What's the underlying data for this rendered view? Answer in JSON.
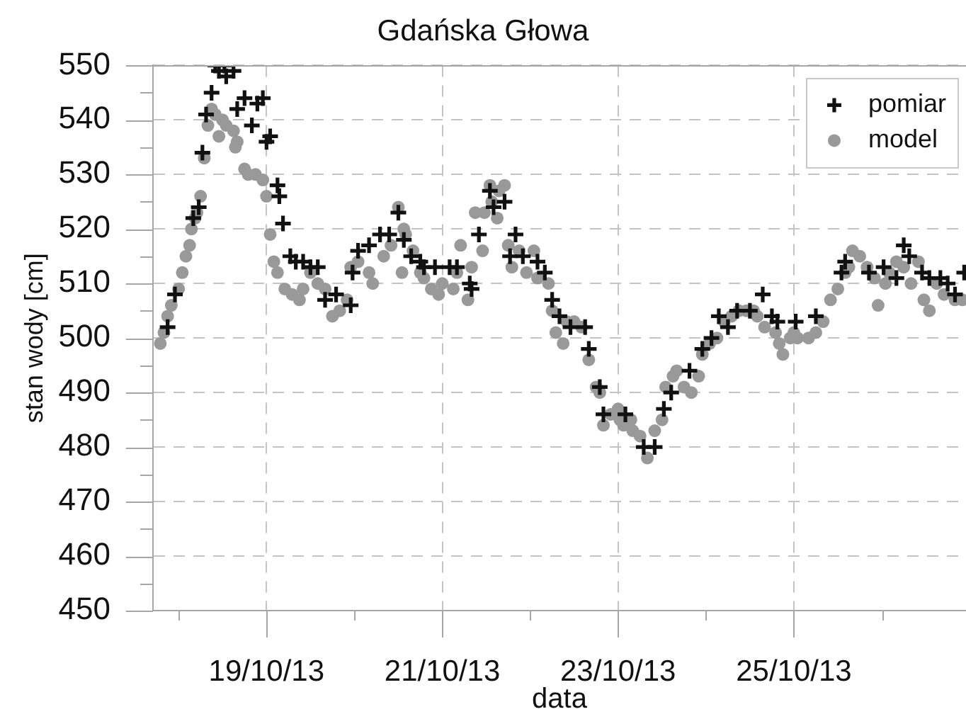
{
  "chart_data": {
    "type": "scatter",
    "title": "Gdańska Głowa",
    "xlabel": "data",
    "ylabel": "stan wody [cm]",
    "xlim": [
      "--10-17T17:00",
      "--10-26T23:00"
    ],
    "xticks": [
      {
        "value": "--10-18",
        "label": null
      },
      {
        "value": "--10-19",
        "label": "19/10/13"
      },
      {
        "value": "--10-20",
        "label": null
      },
      {
        "value": "--10-21",
        "label": "21/10/13"
      },
      {
        "value": "--10-22",
        "label": null
      },
      {
        "value": "--10-23",
        "label": "23/10/13"
      },
      {
        "value": "--10-24",
        "label": null
      },
      {
        "value": "--10-25",
        "label": "25/10/13"
      },
      {
        "value": "--10-26",
        "label": null
      }
    ],
    "ylim": [
      450,
      550
    ],
    "yticks": [
      450,
      {
        "value": 455,
        "label": null
      },
      460,
      {
        "value": 465,
        "label": null
      },
      470,
      {
        "value": 475,
        "label": null
      },
      480,
      {
        "value": 485,
        "label": null
      },
      490,
      {
        "value": 495,
        "label": null
      },
      500,
      {
        "value": 505,
        "label": null
      },
      510,
      {
        "value": 515,
        "label": null
      },
      520,
      {
        "value": 525,
        "label": null
      },
      530,
      {
        "value": 535,
        "label": null
      },
      540,
      {
        "value": 545,
        "label": null
      },
      550
    ],
    "grid": true,
    "legend": "top right",
    "series": [
      {
        "name": "pomiar",
        "color": "#111111",
        "marker": "cross",
        "x": [
          "--10-17T21:00",
          "--10-17T23:00",
          "--10-18T04:00",
          "--10-18T05:30",
          "--10-18T06:30",
          "--10-18T07:30",
          "--10-18T09:00",
          "--10-18T10:00",
          "--10-18T11:00",
          "--10-18T12:30",
          "--10-18T13:00",
          "--10-18T15:00",
          "--10-18T16:00",
          "--10-18T18:00",
          "--10-18T20:00",
          "--10-18T21:30",
          "--10-18T23:00",
          "--10-19T00:00",
          "--10-19T01:00",
          "--10-19T03:00",
          "--10-19T03:30",
          "--10-19T04:30",
          "--10-19T06:30",
          "--10-19T08:00",
          "--10-19T10:00",
          "--10-19T12:00",
          "--10-19T14:00",
          "--10-19T16:00",
          "--10-19T19:00",
          "--10-19T23:00",
          "--10-19T23:30",
          "--10-20T01:00",
          "--10-20T04:00",
          "--10-20T07:00",
          "--10-20T09:30",
          "--10-20T12:00",
          "--10-20T13:30",
          "--10-20T15:30",
          "--10-20T18:00",
          "--10-20T19:00",
          "--10-20T22:00",
          "--10-21T02:00",
          "--10-21T04:00",
          "--10-21T07:30",
          "--10-21T08:00",
          "--10-21T10:00",
          "--10-21T13:00",
          "--10-21T14:00",
          "--10-21T17:00",
          "--10-21T18:30",
          "--10-21T20:00",
          "--10-21T22:00",
          "--10-22T02:00",
          "--10-22T04:00",
          "--10-22T06:00",
          "--10-22T08:00",
          "--10-22T11:00",
          "--10-22T15:00",
          "--10-22T16:00",
          "--10-22T19:00",
          "--10-22T20:00",
          "--10-23T02:00",
          "--10-23T07:00",
          "--10-23T10:00",
          "--10-23T12:30",
          "--10-23T14:30",
          "--10-23T19:30",
          "--10-23T23:00",
          "--10-24T01:30",
          "--10-24T03:30",
          "--10-24T06:00",
          "--10-24T08:30",
          "--10-24T12:00",
          "--10-24T15:30",
          "--10-24T18:00",
          "--10-24T19:30",
          "--10-25T00:30",
          "--10-25T06:00",
          "--10-25T13:00",
          "--10-25T14:00",
          "--10-25T20:30",
          "--10-26T00:30",
          "--10-26T04:00",
          "--10-26T06:00",
          "--10-26T07:30",
          "--10-26T11:00",
          "--10-26T13:00",
          "--10-26T16:00",
          "--10-26T18:00",
          "--10-26T20:00",
          "--10-26T22:30"
        ],
        "values": [
          502,
          508,
          522,
          524,
          534,
          541,
          545,
          550,
          549,
          550,
          548,
          549,
          542,
          544,
          539,
          543,
          544,
          536,
          537,
          528,
          526,
          521,
          515,
          514,
          514,
          513,
          513,
          507,
          508,
          506,
          512,
          516,
          517,
          519,
          519,
          523,
          518,
          515,
          514,
          513,
          513,
          513,
          513,
          510,
          509,
          519,
          527,
          524,
          525,
          515,
          519,
          515,
          514,
          512,
          507,
          504,
          502,
          502,
          498,
          491,
          486,
          486,
          480,
          480,
          487,
          490,
          494,
          498,
          500,
          504,
          502,
          505,
          505,
          508,
          504,
          503,
          503,
          504,
          512,
          514,
          512,
          513,
          511,
          517,
          515,
          512,
          511,
          511,
          510,
          508,
          512
        ]
      },
      {
        "name": "model",
        "color": "#999999",
        "marker": "circle",
        "x": [
          "--10-17T19:00",
          "--10-17T20:00",
          "--10-17T21:00",
          "--10-17T22:00",
          "--10-18T00:00",
          "--10-18T01:00",
          "--10-18T02:00",
          "--10-18T03:00",
          "--10-18T03:30",
          "--10-18T04:30",
          "--10-18T05:00",
          "--10-18T06:00",
          "--10-18T07:00",
          "--10-18T08:00",
          "--10-18T09:00",
          "--10-18T10:00",
          "--10-18T11:00",
          "--10-18T12:00",
          "--10-18T13:00",
          "--10-18T15:00",
          "--10-18T15:30",
          "--10-18T16:00",
          "--10-18T18:00",
          "--10-18T19:00",
          "--10-18T21:00",
          "--10-18T23:00",
          "--10-19T00:00",
          "--10-19T01:00",
          "--10-19T02:00",
          "--10-19T03:00",
          "--10-19T05:00",
          "--10-19T07:00",
          "--10-19T09:00",
          "--10-19T10:00",
          "--10-19T12:00",
          "--10-19T14:00",
          "--10-19T16:00",
          "--10-19T18:00",
          "--10-19T20:00",
          "--10-19T22:00",
          "--10-19T23:00",
          "--10-20T01:00",
          "--10-20T04:00",
          "--10-20T05:00",
          "--10-20T08:00",
          "--10-20T10:00",
          "--10-20T12:00",
          "--10-20T13:00",
          "--10-20T13:30",
          "--10-20T14:00",
          "--10-20T16:00",
          "--10-20T18:00",
          "--10-20T19:00",
          "--10-20T21:00",
          "--10-20T23:00",
          "--10-21T00:00",
          "--10-21T03:00",
          "--10-21T04:00",
          "--10-21T05:00",
          "--10-21T07:00",
          "--10-21T08:00",
          "--10-21T09:00",
          "--10-21T11:00",
          "--10-21T11:30",
          "--10-21T13:00",
          "--10-21T13:30",
          "--10-21T15:00",
          "--10-21T15:30",
          "--10-21T17:00",
          "--10-21T18:00",
          "--10-21T19:00",
          "--10-21T21:00",
          "--10-21T23:00",
          "--10-22T01:00",
          "--10-22T02:00",
          "--10-22T05:00",
          "--10-22T06:00",
          "--10-22T07:00",
          "--10-22T09:00",
          "--10-22T10:00",
          "--10-22T12:00",
          "--10-22T14:00",
          "--10-22T16:00",
          "--10-22T18:00",
          "--10-22T19:00",
          "--10-22T20:00",
          "--10-22T22:00",
          "--10-23T00:00",
          "--10-23T00:30",
          "--10-23T01:30",
          "--10-23T03:30",
          "--10-23T04:00",
          "--10-23T06:00",
          "--10-23T08:00",
          "--10-23T10:00",
          "--10-23T12:00",
          "--10-23T13:00",
          "--10-23T15:00",
          "--10-23T16:00",
          "--10-23T18:00",
          "--10-23T20:00",
          "--10-23T22:00",
          "--10-23T23:00",
          "--10-24T01:00",
          "--10-24T03:00",
          "--10-24T05:00",
          "--10-24T07:00",
          "--10-24T09:00",
          "--10-24T11:00",
          "--10-24T13:00",
          "--10-24T14:00",
          "--10-24T16:00",
          "--10-24T19:00",
          "--10-24T20:00",
          "--10-24T21:00",
          "--10-24T23:00",
          "--10-25T00:00",
          "--10-25T01:00",
          "--10-25T04:00",
          "--10-25T06:00",
          "--10-25T08:00",
          "--10-25T10:00",
          "--10-25T12:00",
          "--10-25T14:00",
          "--10-25T15:00",
          "--10-25T16:00",
          "--10-25T18:00",
          "--10-25T20:00",
          "--10-25T22:00",
          "--10-25T23:00",
          "--10-26T01:00",
          "--10-26T02:00",
          "--10-26T04:00",
          "--10-26T06:00",
          "--10-26T08:00",
          "--10-26T10:00",
          "--10-26T11:30",
          "--10-26T13:00",
          "--10-26T15:00",
          "--10-26T17:00",
          "--10-26T20:00",
          "--10-26T22:00"
        ],
        "values": [
          499,
          501,
          504,
          506,
          509,
          512,
          515,
          517,
          520,
          522,
          523,
          526,
          533,
          539,
          542,
          541,
          537,
          540,
          539,
          538,
          535,
          536,
          531,
          530,
          530,
          529,
          526,
          519,
          514,
          512,
          509,
          508,
          507,
          509,
          512,
          510,
          509,
          504,
          505,
          507,
          513,
          514,
          512,
          510,
          515,
          517,
          524,
          512,
          520,
          519,
          516,
          512,
          511,
          509,
          508,
          510,
          509,
          512,
          517,
          507,
          513,
          523,
          516,
          523,
          528,
          525,
          522,
          527,
          528,
          517,
          513,
          516,
          512,
          516,
          511,
          510,
          505,
          501,
          499,
          503,
          503,
          502,
          496,
          491,
          490,
          484,
          486,
          487,
          485,
          484,
          485,
          483,
          482,
          478,
          483,
          485,
          491,
          493,
          494,
          491,
          490,
          493,
          497,
          499,
          500,
          503,
          504,
          505,
          505,
          505,
          504,
          502,
          501,
          499,
          497,
          500,
          501,
          500,
          500,
          501,
          503,
          507,
          509,
          512,
          513,
          516,
          515,
          513,
          511,
          506,
          510,
          512,
          514,
          513,
          510,
          514,
          507,
          505,
          510,
          508,
          507,
          507
        ]
      }
    ]
  }
}
